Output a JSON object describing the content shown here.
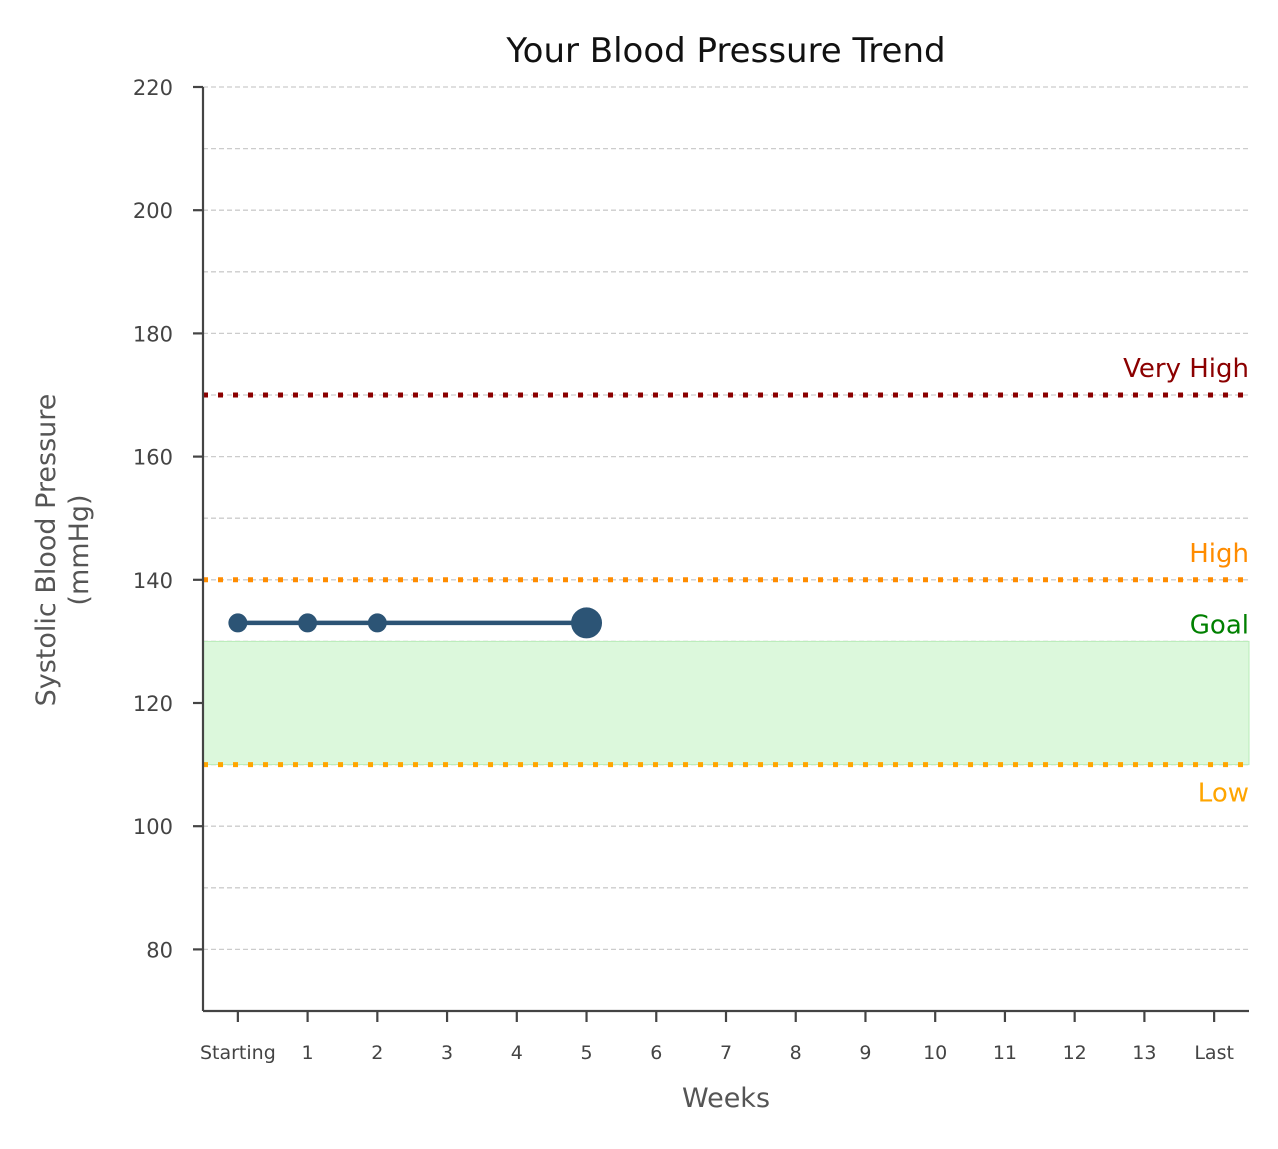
{
  "chart_data": {
    "type": "line",
    "title": "Your Blood Pressure Trend",
    "xlabel": "Weeks",
    "ylabel_lines": [
      "Systolic Blood Pressure",
      "(mmHg)"
    ],
    "x_ticks": [
      "Starting",
      "1",
      "2",
      "3",
      "4",
      "5",
      "6",
      "7",
      "8",
      "9",
      "10",
      "11",
      "12",
      "13",
      "Last"
    ],
    "x_range": [
      -0.5,
      14.5
    ],
    "y_ticks": [
      80,
      100,
      120,
      140,
      160,
      180,
      200,
      220
    ],
    "y_range": [
      70,
      220
    ],
    "grid": true,
    "series": [
      {
        "x": [
          0,
          1,
          2,
          5
        ],
        "values": [
          133,
          133,
          133,
          133
        ],
        "color": "#2c5475",
        "last_point_emphasized": true
      }
    ],
    "goal_band": {
      "from": 110,
      "to": 130,
      "color": "#dcf8dc",
      "label": "Goal",
      "label_color": "#008000"
    },
    "thresholds": [
      {
        "value": 170,
        "label": "Very High",
        "color": "#8b0000"
      },
      {
        "value": 140,
        "label": "High",
        "color": "#ff8c00"
      },
      {
        "value": 110,
        "label": "Low",
        "color": "#ffa500"
      }
    ]
  }
}
